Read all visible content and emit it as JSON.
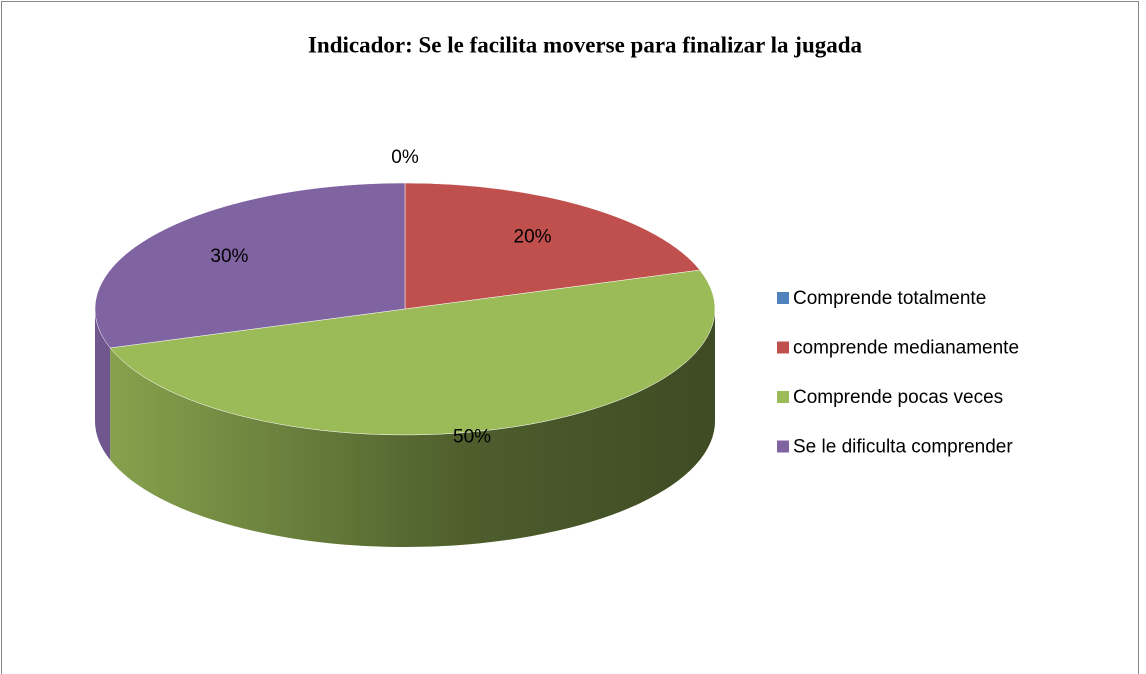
{
  "chart_data": {
    "type": "pie",
    "title": "Indicador: Se le facilita moverse para finalizar la jugada",
    "categories": [
      "Comprende totalmente",
      "comprende medianamente",
      "Comprende pocas veces",
      "Se le dificulta comprender"
    ],
    "values": [
      0,
      20,
      50,
      30
    ],
    "value_labels": [
      "0%",
      "20%",
      "50%",
      "30%"
    ],
    "colors": [
      "#4f81bd",
      "#c0504d",
      "#9bbb59",
      "#8064a2"
    ],
    "legend": "right"
  }
}
